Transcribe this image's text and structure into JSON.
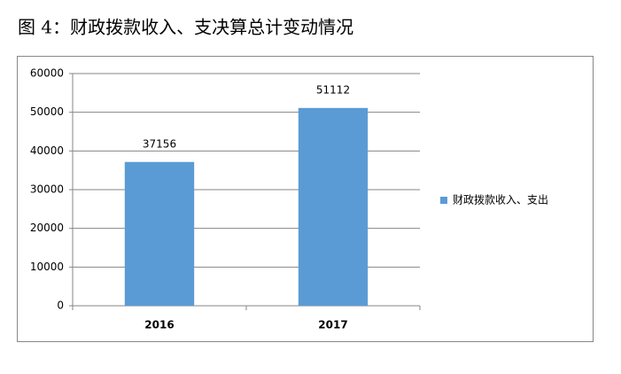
{
  "chart_data": {
    "type": "bar",
    "title": "图 4：财政拨款收入、支决算总计变动情况",
    "categories": [
      "2016",
      "2017"
    ],
    "series": [
      {
        "name": "财政拨款收入、支出",
        "color": "#5b9bd5",
        "values": [
          37156,
          51112
        ]
      }
    ],
    "ylim": [
      0,
      60000
    ],
    "yticks": [
      0,
      10000,
      20000,
      30000,
      40000,
      50000,
      60000
    ],
    "grid": true,
    "legend": "right",
    "data_labels": true
  }
}
